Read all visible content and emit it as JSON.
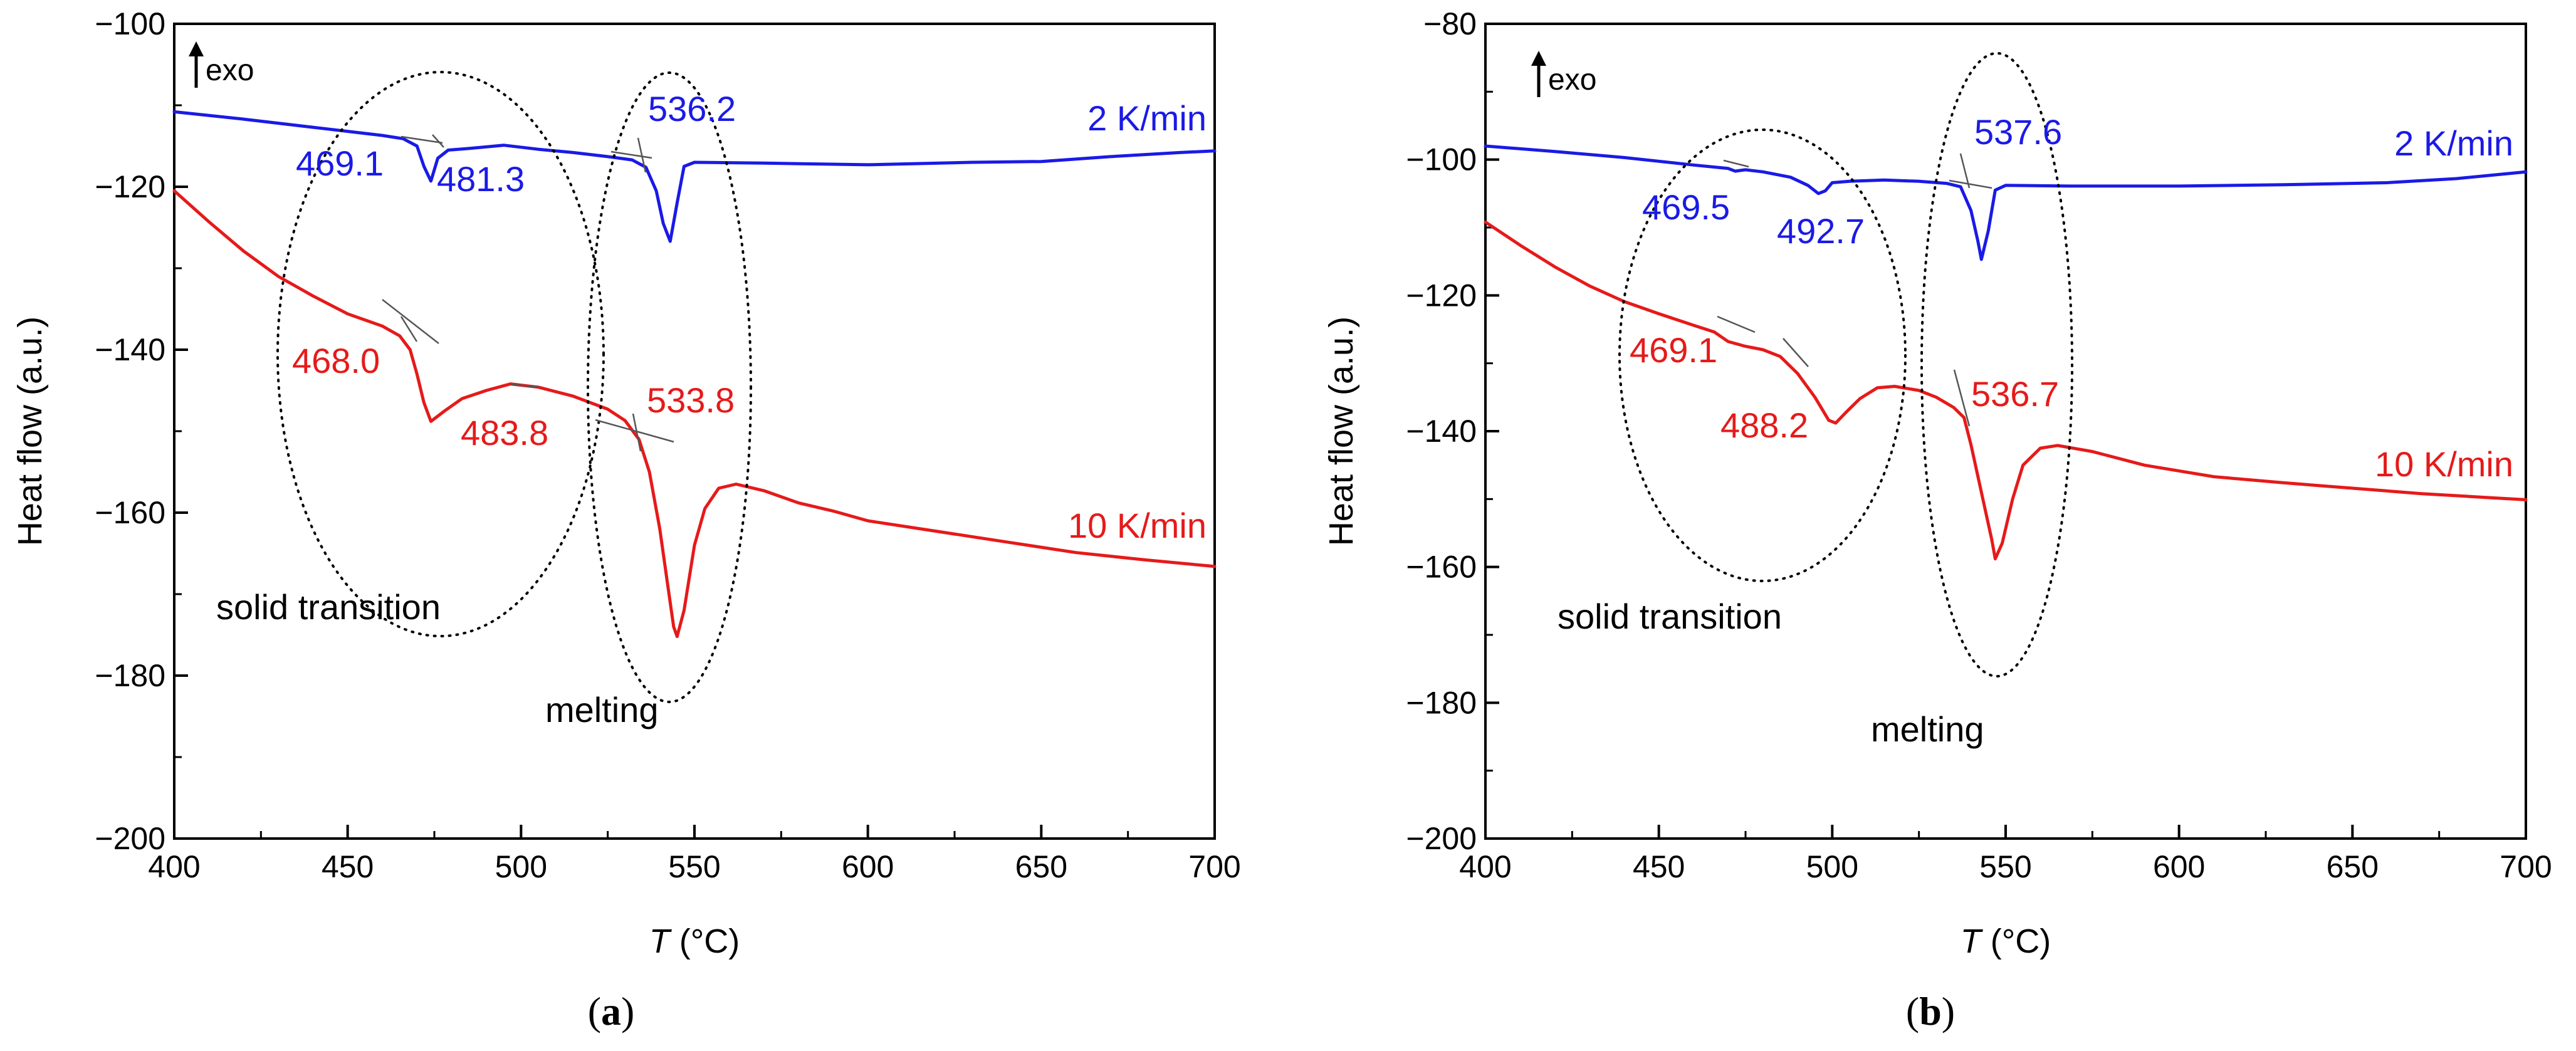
{
  "chart_data": [
    {
      "panel": "(a)",
      "type": "line",
      "xlabel_italic": "T",
      "xlabel_rest": " (°C)",
      "ylabel": "Heat flow (a.u.)",
      "xlim": [
        400,
        700
      ],
      "ylim": [
        -200,
        -100
      ],
      "xticks": [
        400,
        450,
        500,
        550,
        600,
        650,
        700
      ],
      "yticks": [
        -200,
        -180,
        -160,
        -140,
        -120,
        -100
      ],
      "exo_label": "exo",
      "series": [
        {
          "name": "2 K/min",
          "color": "#1a1ae6",
          "points": [
            [
              400,
              -110.8
            ],
            [
              420,
              -111.7
            ],
            [
              440,
              -112.7
            ],
            [
              460,
              -113.7
            ],
            [
              466,
              -114.1
            ],
            [
              470,
              -115.0
            ],
            [
              472,
              -117.5
            ],
            [
              474,
              -119.3
            ],
            [
              476,
              -116.5
            ],
            [
              479,
              -115.5
            ],
            [
              485,
              -115.3
            ],
            [
              495,
              -114.9
            ],
            [
              505,
              -115.4
            ],
            [
              515,
              -115.8
            ],
            [
              525,
              -116.3
            ],
            [
              532,
              -116.7
            ],
            [
              536,
              -117.6
            ],
            [
              539,
              -120.5
            ],
            [
              541,
              -124.5
            ],
            [
              543,
              -126.7
            ],
            [
              545,
              -122.0
            ],
            [
              547,
              -117.5
            ],
            [
              550,
              -117.0
            ],
            [
              570,
              -117.1
            ],
            [
              600,
              -117.3
            ],
            [
              630,
              -117.0
            ],
            [
              650,
              -116.9
            ],
            [
              670,
              -116.3
            ],
            [
              690,
              -115.8
            ],
            [
              700,
              -115.6
            ]
          ]
        },
        {
          "name": "10 K/min",
          "color": "#e61a1a",
          "points": [
            [
              400,
              -120.5
            ],
            [
              410,
              -124.3
            ],
            [
              420,
              -127.9
            ],
            [
              430,
              -131.0
            ],
            [
              440,
              -133.4
            ],
            [
              450,
              -135.6
            ],
            [
              460,
              -137.1
            ],
            [
              465,
              -138.3
            ],
            [
              468,
              -140.0
            ],
            [
              470,
              -143.0
            ],
            [
              472,
              -146.5
            ],
            [
              474,
              -148.8
            ],
            [
              478,
              -147.5
            ],
            [
              483,
              -146.0
            ],
            [
              490,
              -145.0
            ],
            [
              497,
              -144.2
            ],
            [
              505,
              -144.6
            ],
            [
              515,
              -145.7
            ],
            [
              525,
              -147.3
            ],
            [
              530,
              -148.7
            ],
            [
              534,
              -151.0
            ],
            [
              537,
              -155.0
            ],
            [
              540,
              -162.0
            ],
            [
              542,
              -168.0
            ],
            [
              544,
              -174.0
            ],
            [
              545,
              -175.2
            ],
            [
              547,
              -172.0
            ],
            [
              550,
              -164.0
            ],
            [
              553,
              -159.5
            ],
            [
              557,
              -157.0
            ],
            [
              562,
              -156.5
            ],
            [
              570,
              -157.3
            ],
            [
              580,
              -158.8
            ],
            [
              590,
              -159.8
            ],
            [
              600,
              -161.0
            ],
            [
              620,
              -162.3
            ],
            [
              640,
              -163.6
            ],
            [
              660,
              -164.9
            ],
            [
              680,
              -165.8
            ],
            [
              700,
              -166.6
            ]
          ]
        }
      ],
      "series_labels": [
        {
          "text": "2 K/min",
          "color": "#1a1ae6"
        },
        {
          "text": "10 K/min",
          "color": "#e61a1a"
        }
      ],
      "annotations": [
        {
          "text": "469.1",
          "x": 469.1,
          "color": "#1a1ae6"
        },
        {
          "text": "481.3",
          "x": 481.3,
          "color": "#1a1ae6"
        },
        {
          "text": "536.2",
          "x": 536.2,
          "color": "#1a1ae6"
        },
        {
          "text": "468.0",
          "x": 468.0,
          "color": "#e61a1a"
        },
        {
          "text": "483.8",
          "x": 483.8,
          "color": "#e61a1a"
        },
        {
          "text": "533.8",
          "x": 533.8,
          "color": "#e61a1a"
        }
      ],
      "regions": [
        "solid transition",
        "melting"
      ]
    },
    {
      "panel": "(b)",
      "type": "line",
      "xlabel_italic": "T",
      "xlabel_rest": " (°C)",
      "ylabel": "Heat flow (a.u.)",
      "xlim": [
        400,
        700
      ],
      "ylim": [
        -200,
        -80
      ],
      "xticks": [
        400,
        450,
        500,
        550,
        600,
        650,
        700
      ],
      "yticks": [
        -200,
        -180,
        -160,
        -140,
        -120,
        -100,
        -80
      ],
      "exo_label": "exo",
      "series": [
        {
          "name": "2 K/min",
          "color": "#1a1ae6",
          "points": [
            [
              400,
              -98.0
            ],
            [
              420,
              -98.8
            ],
            [
              440,
              -99.7
            ],
            [
              460,
              -100.8
            ],
            [
              470,
              -101.3
            ],
            [
              472,
              -101.7
            ],
            [
              475,
              -101.5
            ],
            [
              480,
              -101.8
            ],
            [
              488,
              -102.6
            ],
            [
              493,
              -103.8
            ],
            [
              496,
              -105.0
            ],
            [
              498,
              -104.6
            ],
            [
              500,
              -103.4
            ],
            [
              505,
              -103.2
            ],
            [
              515,
              -103.0
            ],
            [
              525,
              -103.2
            ],
            [
              533,
              -103.5
            ],
            [
              537,
              -104.0
            ],
            [
              540,
              -107.5
            ],
            [
              542,
              -112.0
            ],
            [
              543,
              -114.7
            ],
            [
              545,
              -110.5
            ],
            [
              547,
              -104.5
            ],
            [
              550,
              -103.8
            ],
            [
              570,
              -103.9
            ],
            [
              600,
              -103.9
            ],
            [
              630,
              -103.7
            ],
            [
              660,
              -103.4
            ],
            [
              680,
              -102.8
            ],
            [
              700,
              -101.8
            ]
          ]
        },
        {
          "name": "10 K/min",
          "color": "#e61a1a",
          "points": [
            [
              400,
              -109.2
            ],
            [
              410,
              -112.6
            ],
            [
              420,
              -115.8
            ],
            [
              430,
              -118.6
            ],
            [
              440,
              -120.9
            ],
            [
              450,
              -122.7
            ],
            [
              460,
              -124.4
            ],
            [
              466,
              -125.4
            ],
            [
              470,
              -126.8
            ],
            [
              475,
              -127.5
            ],
            [
              480,
              -128.0
            ],
            [
              485,
              -129.0
            ],
            [
              490,
              -131.5
            ],
            [
              495,
              -135.0
            ],
            [
              499,
              -138.4
            ],
            [
              501,
              -138.8
            ],
            [
              504,
              -137.2
            ],
            [
              508,
              -135.2
            ],
            [
              513,
              -133.6
            ],
            [
              518,
              -133.4
            ],
            [
              525,
              -134.0
            ],
            [
              530,
              -135.0
            ],
            [
              535,
              -136.5
            ],
            [
              538,
              -138.0
            ],
            [
              540,
              -142.0
            ],
            [
              543,
              -149.0
            ],
            [
              546,
              -156.0
            ],
            [
              547,
              -158.8
            ],
            [
              549,
              -156.5
            ],
            [
              552,
              -150.0
            ],
            [
              555,
              -145.0
            ],
            [
              560,
              -142.5
            ],
            [
              565,
              -142.1
            ],
            [
              575,
              -143.0
            ],
            [
              590,
              -145.0
            ],
            [
              610,
              -146.7
            ],
            [
              630,
              -147.6
            ],
            [
              650,
              -148.4
            ],
            [
              670,
              -149.2
            ],
            [
              690,
              -149.8
            ],
            [
              700,
              -150.1
            ]
          ]
        }
      ],
      "series_labels": [
        {
          "text": "2 K/min",
          "color": "#1a1ae6"
        },
        {
          "text": "10 K/min",
          "color": "#e61a1a"
        }
      ],
      "annotations": [
        {
          "text": "469.5",
          "x": 469.5,
          "color": "#1a1ae6"
        },
        {
          "text": "492.7",
          "x": 492.7,
          "color": "#1a1ae6"
        },
        {
          "text": "537.6",
          "x": 537.6,
          "color": "#1a1ae6"
        },
        {
          "text": "469.1",
          "x": 469.1,
          "color": "#e61a1a"
        },
        {
          "text": "488.2",
          "x": 488.2,
          "color": "#e61a1a"
        },
        {
          "text": "536.7",
          "x": 536.7,
          "color": "#e61a1a"
        }
      ],
      "regions": [
        "solid transition",
        "melting"
      ]
    }
  ],
  "panel_letters": [
    "a",
    "b"
  ]
}
